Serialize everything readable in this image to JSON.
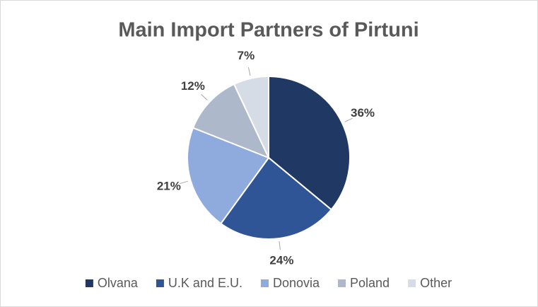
{
  "chart_data": {
    "type": "pie",
    "title": "Main Import Partners of Pirtuni",
    "categories": [
      "Olvana",
      "U.K and E.U.",
      "Donovia",
      "Poland",
      "Other"
    ],
    "values": [
      36,
      24,
      21,
      12,
      7
    ],
    "value_labels": [
      "36%",
      "24%",
      "21%",
      "12%",
      "7%"
    ],
    "colors": [
      "#1f3864",
      "#2f5597",
      "#8faadc",
      "#adb9ca",
      "#d6dce5"
    ],
    "legend": "bottom"
  }
}
